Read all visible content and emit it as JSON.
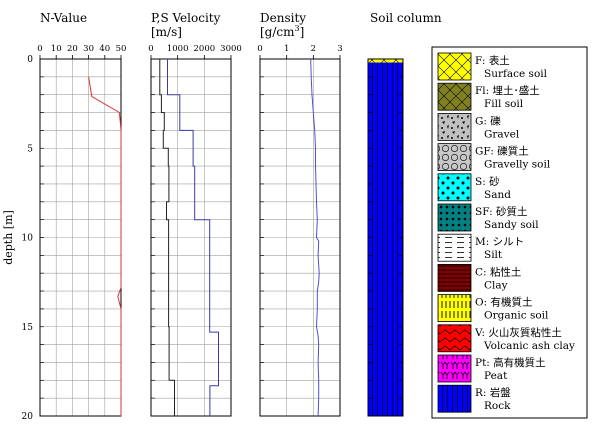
{
  "chart_data": [
    {
      "type": "line",
      "title": "N-Value",
      "ylabel": "depth [m]",
      "xlim": [
        0,
        50
      ],
      "xticks": [
        "0",
        "10",
        "20",
        "30",
        "40",
        "50"
      ],
      "ylim": [
        0,
        20
      ],
      "yticks": [
        "0",
        "5",
        "10",
        "15",
        "20"
      ],
      "grid": true,
      "series": [
        {
          "color": "#e03030",
          "x": [
            30,
            32,
            49,
            50,
            50,
            50,
            48,
            50,
            50
          ],
          "y": [
            1.0,
            2.1,
            3.0,
            4.0,
            12.0,
            12.8,
            13.3,
            14.0,
            20.0
          ]
        }
      ]
    },
    {
      "type": "line",
      "title": "P,S Velocity",
      "unit": "[m/s]",
      "xlim": [
        0,
        3000
      ],
      "xticks": [
        "0",
        "1000",
        "2000",
        "3000"
      ],
      "ylim": [
        0,
        20
      ],
      "grid": true,
      "series": [
        {
          "color": "#3a3aaa",
          "x": [
            620,
            620,
            1080,
            1080,
            1580,
            1580,
            1640,
            1640,
            2200,
            2200,
            2530,
            2530,
            2210,
            2210
          ],
          "y": [
            0,
            2.0,
            2.0,
            4.0,
            4.0,
            6.0,
            6.0,
            9.0,
            9.0,
            15.3,
            15.3,
            18.3,
            18.3,
            20.0
          ]
        },
        {
          "color": "#222222",
          "x": [
            330,
            330,
            390,
            390,
            500,
            500,
            460,
            460,
            650,
            650,
            670,
            670,
            580,
            580,
            660,
            660,
            680,
            680,
            880,
            880
          ],
          "y": [
            0,
            2.0,
            2.0,
            3.0,
            3.0,
            4.0,
            4.0,
            5.0,
            5.0,
            6.0,
            6.0,
            8.0,
            8.0,
            9.0,
            9.0,
            15.0,
            15.0,
            18.0,
            18.0,
            20.0
          ]
        }
      ]
    },
    {
      "type": "line",
      "title": "Density",
      "unit_prefix": "[g/cm",
      "unit_sup": "3",
      "unit_suffix": "]",
      "xlim": [
        0,
        3
      ],
      "xticks": [
        "0",
        "1",
        "2",
        "3"
      ],
      "ylim": [
        0,
        20
      ],
      "grid": true,
      "series": [
        {
          "color": "#5050d0",
          "x": [
            1.9,
            1.92,
            1.95,
            2.0,
            2.05,
            2.08,
            2.08,
            2.1,
            2.12,
            2.15,
            2.12,
            2.2,
            2.18,
            2.22,
            2.2,
            2.15,
            2.15,
            2.12,
            2.18,
            2.2,
            2.18,
            2.2,
            2.2,
            2.2,
            2.18
          ],
          "y": [
            0,
            1,
            2,
            3,
            4,
            5,
            6,
            7,
            8,
            9,
            10,
            10.2,
            11,
            12,
            12.5,
            13,
            14,
            15,
            15.5,
            16,
            17,
            18,
            18.5,
            19,
            20
          ]
        }
      ]
    }
  ],
  "soil_column": {
    "title": "Soil column",
    "layers": [
      {
        "type": "F",
        "top": 0,
        "bottom": 0.2
      },
      {
        "type": "R",
        "top": 0.2,
        "bottom": 20
      }
    ]
  },
  "legend": [
    {
      "code": "F",
      "jp": "表土",
      "en": "Surface soil",
      "color": "#ffff00",
      "pattern": "cross"
    },
    {
      "code": "Fl",
      "jp": "埋土･盛土",
      "en": "Fill soil",
      "color": "#808020",
      "pattern": "cross"
    },
    {
      "code": "G",
      "jp": "礫",
      "en": "Gravel",
      "color": "#c0c0c0",
      "pattern": "gravel"
    },
    {
      "code": "GF",
      "jp": "礫質土",
      "en": "Gravelly soil",
      "color": "#c8c8c8",
      "pattern": "circles"
    },
    {
      "code": "S",
      "jp": "砂",
      "en": "Sand",
      "color": "#00ffff",
      "pattern": "dots"
    },
    {
      "code": "SF",
      "jp": "砂質土",
      "en": "Sandy soil",
      "color": "#008080",
      "pattern": "dotgrid"
    },
    {
      "code": "M",
      "jp": "シルト",
      "en": "Silt",
      "color": "#ffffff",
      "pattern": "dashes"
    },
    {
      "code": "C",
      "jp": "粘性土",
      "en": "Clay",
      "color": "#800000",
      "pattern": "hlines"
    },
    {
      "code": "O",
      "jp": "有機質土",
      "en": "Organic soil",
      "color": "#ffff00",
      "pattern": "vdash"
    },
    {
      "code": "V",
      "jp": "火山灰質粘性土",
      "en": "Volcanic ash clay",
      "color": "#ff0000",
      "pattern": "zigzag"
    },
    {
      "code": "Pt",
      "jp": "高有機質土",
      "en": "Peat",
      "color": "#ff00ff",
      "pattern": "peat"
    },
    {
      "code": "R",
      "jp": "岩盤",
      "en": "Rock",
      "color": "#0000ff",
      "pattern": "rock"
    }
  ]
}
